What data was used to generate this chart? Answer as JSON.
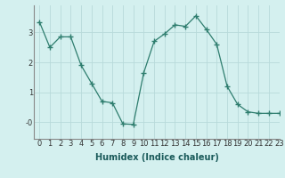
{
  "x": [
    0,
    1,
    2,
    3,
    4,
    5,
    6,
    7,
    8,
    9,
    10,
    11,
    12,
    13,
    14,
    15,
    16,
    17,
    18,
    19,
    20,
    21,
    22,
    23
  ],
  "y": [
    3.35,
    2.5,
    2.85,
    2.85,
    1.9,
    1.3,
    0.7,
    0.65,
    -0.05,
    -0.07,
    1.65,
    2.7,
    2.95,
    3.25,
    3.2,
    3.55,
    3.1,
    2.6,
    1.2,
    0.6,
    0.35,
    0.3,
    0.3,
    0.3
  ],
  "xlabel": "Humidex (Indice chaleur)",
  "xlim": [
    -0.5,
    23
  ],
  "ylim": [
    -0.55,
    3.9
  ],
  "yticks": [
    0,
    1,
    2,
    3
  ],
  "ytick_labels": [
    "-0",
    "1",
    "2",
    "3"
  ],
  "xticks": [
    0,
    1,
    2,
    3,
    4,
    5,
    6,
    7,
    8,
    9,
    10,
    11,
    12,
    13,
    14,
    15,
    16,
    17,
    18,
    19,
    20,
    21,
    22,
    23
  ],
  "line_color": "#2e7d6e",
  "marker": "+",
  "marker_size": 4,
  "marker_color": "#2e7d6e",
  "bg_color": "#d4f0ef",
  "grid_color": "#b8dada",
  "xlabel_fontsize": 7,
  "tick_fontsize": 6
}
